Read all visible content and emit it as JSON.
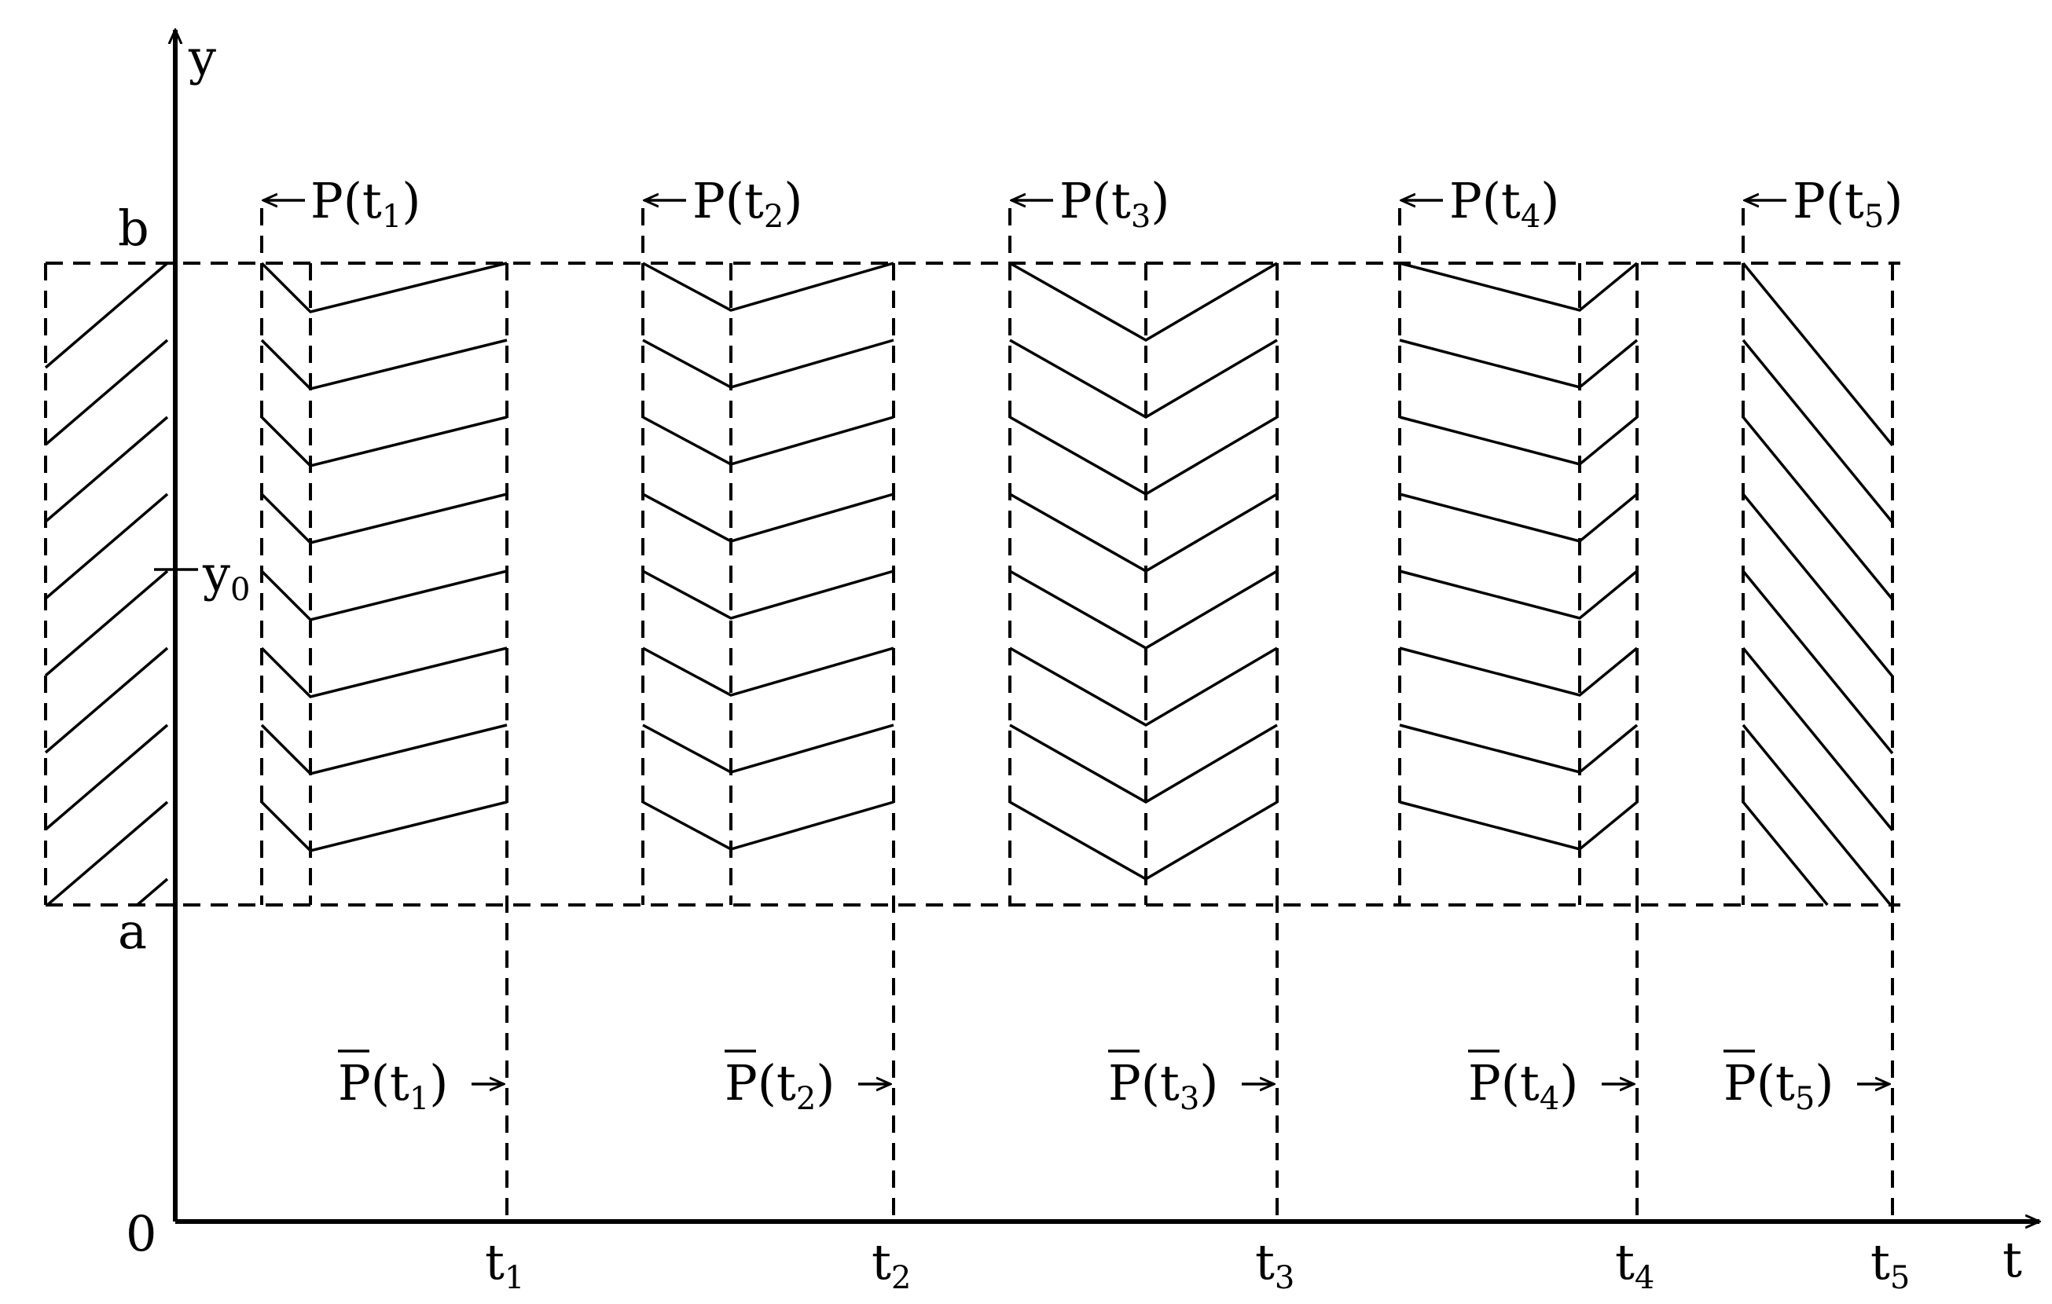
{
  "axes": {
    "x_label": "t",
    "y_label": "y",
    "origin_label": "0",
    "y_ticks": {
      "b": "b",
      "a": "a",
      "y0": {
        "base": "y",
        "sub": "0"
      }
    },
    "t_ticks": [
      {
        "base": "t",
        "sub": "1"
      },
      {
        "base": "t",
        "sub": "2"
      },
      {
        "base": "t",
        "sub": "3"
      },
      {
        "base": "t",
        "sub": "4"
      },
      {
        "base": "t",
        "sub": "5"
      }
    ]
  },
  "panels": [
    {
      "p_label": {
        "base": "P(t",
        "sub": "1",
        "close": ")"
      },
      "pbar_label": {
        "base": "P(t",
        "sub": "1",
        "close": ")"
      }
    },
    {
      "p_label": {
        "base": "P(t",
        "sub": "2",
        "close": ")"
      },
      "pbar_label": {
        "base": "P(t",
        "sub": "2",
        "close": ")"
      }
    },
    {
      "p_label": {
        "base": "P(t",
        "sub": "3",
        "close": ")"
      },
      "pbar_label": {
        "base": "P(t",
        "sub": "3",
        "close": ")"
      }
    },
    {
      "p_label": {
        "base": "P(t",
        "sub": "4",
        "close": ")"
      },
      "pbar_label": {
        "base": "P(t",
        "sub": "4",
        "close": ")"
      }
    },
    {
      "p_label": {
        "base": "P(t",
        "sub": "5",
        "close": ")"
      },
      "pbar_label": {
        "base": "P(t",
        "sub": "5",
        "close": ")"
      }
    }
  ]
}
